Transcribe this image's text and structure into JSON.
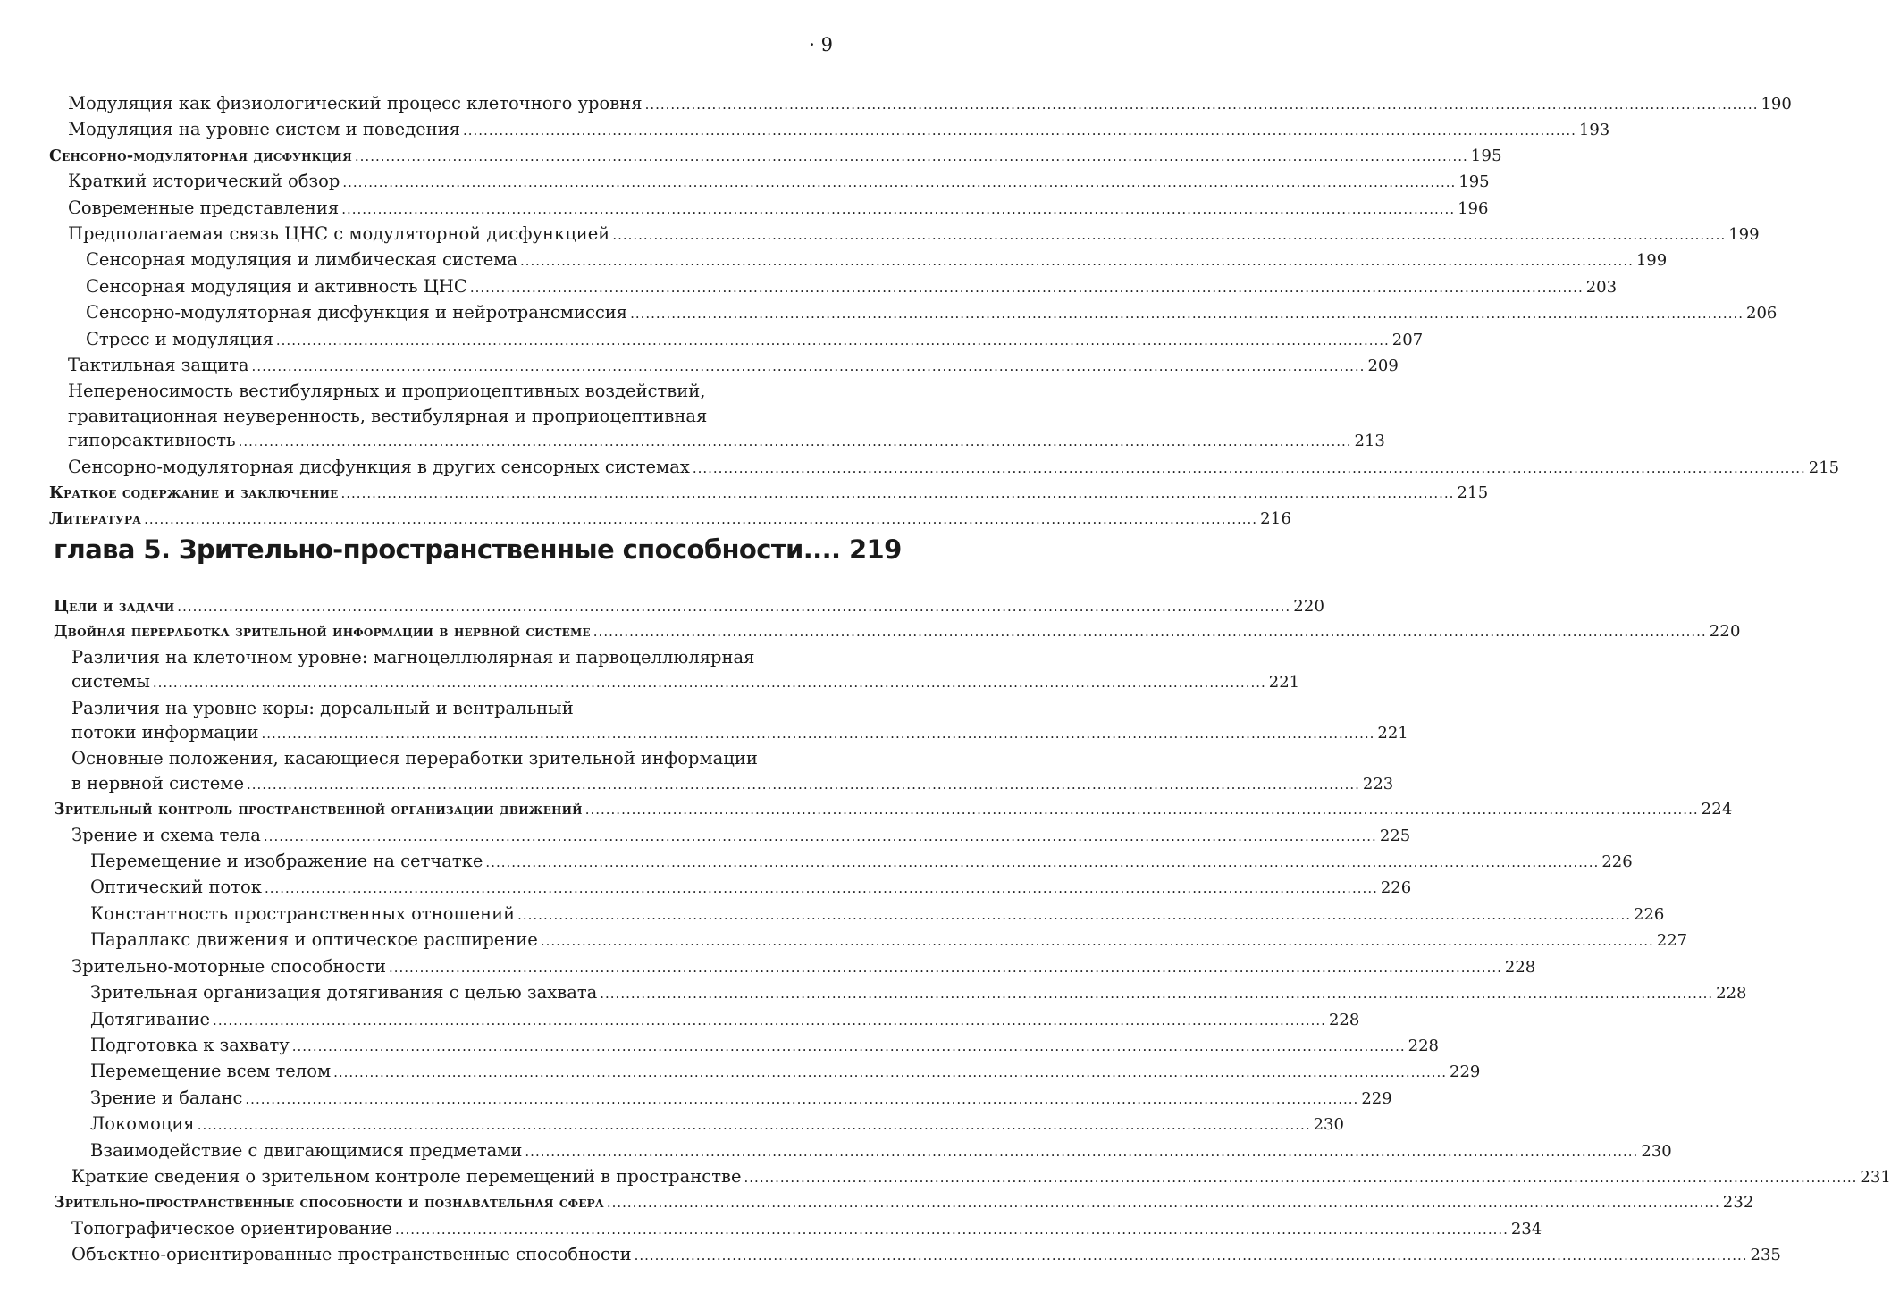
{
  "page_number": "· 9",
  "toc_part1": [
    {
      "level": 1,
      "lines": [
        "Модуляция как физиологический процесс клеточного уровня"
      ],
      "page": "190"
    },
    {
      "level": 1,
      "lines": [
        "Модуляция на уровне систем и поведения"
      ],
      "page": "193"
    },
    {
      "level": 0,
      "lines": [
        "Сенсорно-модуляторная дисфункция"
      ],
      "page": "195"
    },
    {
      "level": 1,
      "lines": [
        "Краткий исторический обзор"
      ],
      "page": "195"
    },
    {
      "level": 1,
      "lines": [
        "Современные представления"
      ],
      "page": "196"
    },
    {
      "level": 1,
      "lines": [
        "Предполагаемая связь ЦНС с модуляторной дисфункцией"
      ],
      "page": "199"
    },
    {
      "level": 2,
      "lines": [
        "Сенсорная модуляция и лимбическая система"
      ],
      "page": "199"
    },
    {
      "level": 2,
      "lines": [
        "Сенсорная модуляция и активность ЦНС"
      ],
      "page": "203"
    },
    {
      "level": 2,
      "lines": [
        "Сенсорно-модуляторная дисфункция и нейротрансмиссия"
      ],
      "page": "206"
    },
    {
      "level": 2,
      "lines": [
        "Стресс и модуляция"
      ],
      "page": "207"
    },
    {
      "level": 1,
      "lines": [
        "Тактильная защита"
      ],
      "page": "209"
    },
    {
      "level": 1,
      "lines": [
        "Непереносимость вестибулярных и проприоцептивных воздействий,",
        "гравитационная неуверенность, вестибулярная и проприоцептивная",
        "гипореактивность"
      ],
      "page": "213"
    },
    {
      "level": 1,
      "lines": [
        "Сенсорно-модуляторная дисфункция в других сенсорных системах"
      ],
      "page": "215"
    },
    {
      "level": 0,
      "lines": [
        "Краткое содержание и заключение"
      ],
      "page": "215"
    },
    {
      "level": 0,
      "lines": [
        "Литература"
      ],
      "page": "216"
    }
  ],
  "chapter": {
    "title": "глава 5. Зрительно-пространственные способности",
    "dots": "....",
    "page": "219"
  },
  "toc_part2": [
    {
      "level": 0,
      "lines": [
        "Цели и задачи"
      ],
      "page": "220"
    },
    {
      "level": 0,
      "lines": [
        "Двойная переработка зрительной информации в нервной системе"
      ],
      "page": "220"
    },
    {
      "level": 1,
      "lines": [
        "Различия на клеточном уровне: магноцеллюлярная и парвоцеллюлярная",
        "системы"
      ],
      "page": "221"
    },
    {
      "level": 1,
      "lines": [
        "Различия на уровне коры: дорсальный и вентральный",
        "потоки информации"
      ],
      "page": "221"
    },
    {
      "level": 1,
      "lines": [
        "Основные положения, касающиеся переработки зрительной информации",
        "в нервной системе"
      ],
      "page": "223"
    },
    {
      "level": 0,
      "lines": [
        "Зрительный контроль пространственной организации движений"
      ],
      "page": "224"
    },
    {
      "level": 1,
      "lines": [
        "Зрение и схема тела"
      ],
      "page": "225"
    },
    {
      "level": 2,
      "lines": [
        "Перемещение и изображение на сетчатке"
      ],
      "page": "226"
    },
    {
      "level": 2,
      "lines": [
        "Оптический поток"
      ],
      "page": "226"
    },
    {
      "level": 2,
      "lines": [
        "Константность пространственных отношений"
      ],
      "page": "226"
    },
    {
      "level": 2,
      "lines": [
        "Параллакс движения и оптическое расширение"
      ],
      "page": "227"
    },
    {
      "level": 1,
      "lines": [
        "Зрительно-моторные способности"
      ],
      "page": "228"
    },
    {
      "level": 2,
      "lines": [
        "Зрительная организация дотягивания с целью захвата"
      ],
      "page": "228"
    },
    {
      "level": 2,
      "lines": [
        "Дотягивание"
      ],
      "page": "228"
    },
    {
      "level": 2,
      "lines": [
        "Подготовка к захвату"
      ],
      "page": "228"
    },
    {
      "level": 2,
      "lines": [
        "Перемещение всем телом"
      ],
      "page": "229"
    },
    {
      "level": 2,
      "lines": [
        "Зрение и баланс"
      ],
      "page": "229"
    },
    {
      "level": 2,
      "lines": [
        "Локомоция"
      ],
      "page": "230"
    },
    {
      "level": 2,
      "lines": [
        "Взаимодействие с двигающимися предметами"
      ],
      "page": "230"
    },
    {
      "level": 1,
      "lines": [
        "Краткие сведения о зрительном контроле перемещений в пространстве"
      ],
      "page": "231"
    },
    {
      "level": 0,
      "lines": [
        "Зрительно-пространственные способности и познавательная сфера"
      ],
      "page": "232"
    },
    {
      "level": 1,
      "lines": [
        "Топографическое ориентирование"
      ],
      "page": "234"
    },
    {
      "level": 1,
      "lines": [
        "Объектно-ориентированные пространственные способности"
      ],
      "page": "235"
    }
  ]
}
